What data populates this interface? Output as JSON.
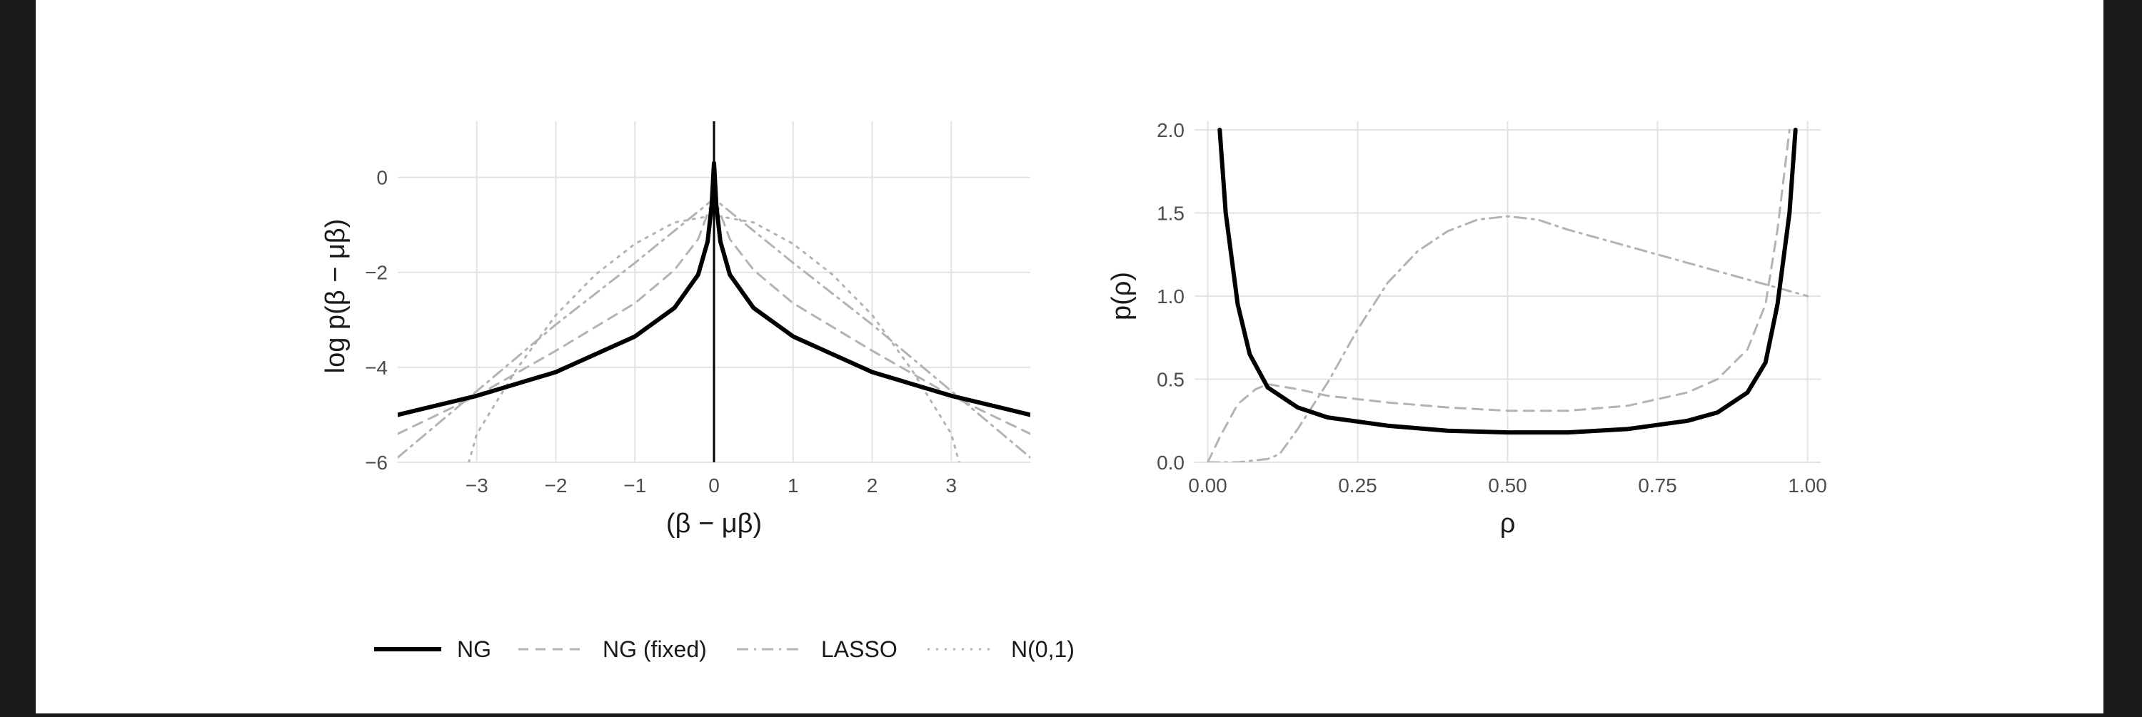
{
  "legend": [
    {
      "key": "ng",
      "label": "NG",
      "color": "#000000",
      "width": 6,
      "dash": ""
    },
    {
      "key": "ng_fixed",
      "label": "NG (fixed)",
      "color": "#b3b3b3",
      "width": 3,
      "dash": "14 10"
    },
    {
      "key": "lasso",
      "label": "LASSO",
      "color": "#b3b3b3",
      "width": 3,
      "dash": "16 8 3 8"
    },
    {
      "key": "normal",
      "label": "N(0,1)",
      "color": "#b3b3b3",
      "width": 3,
      "dash": "3 9"
    }
  ],
  "chart_data": [
    {
      "type": "line",
      "xlabel": "(β − μβ)",
      "ylabel": "log p(β − μβ)",
      "xlim": [
        -4,
        4
      ],
      "ylim": [
        -6,
        1
      ],
      "xticks": [
        -3,
        -2,
        -1,
        0,
        1,
        2,
        3
      ],
      "xtick_labels": [
        "−3",
        "−2",
        "−1",
        "0",
        "1",
        "2",
        "3"
      ],
      "yticks": [
        -6,
        -4,
        -2,
        0
      ],
      "ytick_labels": [
        "−6",
        "−4",
        "−2",
        "0"
      ],
      "grid": true,
      "vertical_line_x": 0,
      "series": [
        {
          "key": "ng",
          "x": [
            -4,
            -3,
            -2,
            -1,
            -0.5,
            -0.2,
            -0.08,
            -0.03,
            0,
            0.03,
            0.08,
            0.2,
            0.5,
            1,
            2,
            3,
            4
          ],
          "y": [
            -5.0,
            -4.6,
            -4.1,
            -3.35,
            -2.75,
            -2.05,
            -1.35,
            -0.6,
            0.3,
            -0.6,
            -1.35,
            -2.05,
            -2.75,
            -3.35,
            -4.1,
            -4.6,
            -5.0
          ]
        },
        {
          "key": "ng_fixed",
          "x": [
            -4,
            -3,
            -2,
            -1,
            -0.5,
            -0.2,
            0,
            0.2,
            0.5,
            1,
            2,
            3,
            4
          ],
          "y": [
            -5.4,
            -4.6,
            -3.65,
            -2.65,
            -1.95,
            -1.3,
            -0.4,
            -1.3,
            -1.95,
            -2.65,
            -3.65,
            -4.6,
            -5.4
          ]
        },
        {
          "key": "lasso",
          "x": [
            -4,
            -3,
            -2,
            -1,
            0,
            1,
            2,
            3,
            4
          ],
          "y": [
            -5.9,
            -4.5,
            -3.1,
            -1.8,
            -0.45,
            -1.8,
            -3.1,
            -4.5,
            -5.9
          ]
        },
        {
          "key": "normal",
          "x": [
            -3.1,
            -3,
            -2.5,
            -2,
            -1.5,
            -1,
            -0.5,
            0,
            0.5,
            1,
            1.5,
            2,
            2.5,
            3,
            3.1
          ],
          "y": [
            -6.0,
            -5.4,
            -4.05,
            -2.9,
            -2.05,
            -1.4,
            -0.95,
            -0.8,
            -0.95,
            -1.4,
            -2.05,
            -2.9,
            -4.05,
            -5.4,
            -6.0
          ]
        }
      ]
    },
    {
      "type": "line",
      "xlabel": "ρ",
      "ylabel": "p(ρ)",
      "xlim": [
        0,
        1
      ],
      "ylim": [
        0,
        2
      ],
      "xticks": [
        0,
        0.25,
        0.5,
        0.75,
        1
      ],
      "xtick_labels": [
        "0.00",
        "0.25",
        "0.50",
        "0.75",
        "1.00"
      ],
      "yticks": [
        0,
        0.5,
        1,
        1.5,
        2
      ],
      "ytick_labels": [
        "0.0",
        "0.5",
        "1.0",
        "1.5",
        "2.0"
      ],
      "grid": true,
      "series": [
        {
          "key": "ng",
          "x": [
            0.02,
            0.03,
            0.05,
            0.07,
            0.1,
            0.15,
            0.2,
            0.3,
            0.4,
            0.5,
            0.6,
            0.7,
            0.8,
            0.85,
            0.9,
            0.93,
            0.95,
            0.97,
            0.98
          ],
          "y": [
            2.0,
            1.5,
            0.95,
            0.65,
            0.45,
            0.33,
            0.27,
            0.22,
            0.19,
            0.18,
            0.18,
            0.2,
            0.25,
            0.3,
            0.42,
            0.6,
            0.95,
            1.5,
            2.0
          ]
        },
        {
          "key": "ng_fixed",
          "x": [
            0.0,
            0.02,
            0.05,
            0.08,
            0.1,
            0.15,
            0.2,
            0.3,
            0.4,
            0.5,
            0.6,
            0.7,
            0.8,
            0.85,
            0.9,
            0.93,
            0.95,
            0.96,
            0.97
          ],
          "y": [
            0.0,
            0.15,
            0.35,
            0.44,
            0.47,
            0.44,
            0.4,
            0.36,
            0.33,
            0.31,
            0.31,
            0.34,
            0.42,
            0.5,
            0.68,
            0.95,
            1.4,
            1.7,
            2.0
          ]
        },
        {
          "key": "lasso",
          "x": [
            0.0,
            0.05,
            0.1,
            0.12,
            0.15,
            0.2,
            0.25,
            0.3,
            0.35,
            0.4,
            0.45,
            0.5,
            0.55,
            0.6,
            0.7,
            0.8,
            0.9,
            1.0
          ],
          "y": [
            0.0,
            0.0,
            0.02,
            0.05,
            0.2,
            0.48,
            0.8,
            1.08,
            1.27,
            1.39,
            1.46,
            1.48,
            1.46,
            1.4,
            1.3,
            1.2,
            1.1,
            1.0
          ]
        }
      ]
    }
  ]
}
